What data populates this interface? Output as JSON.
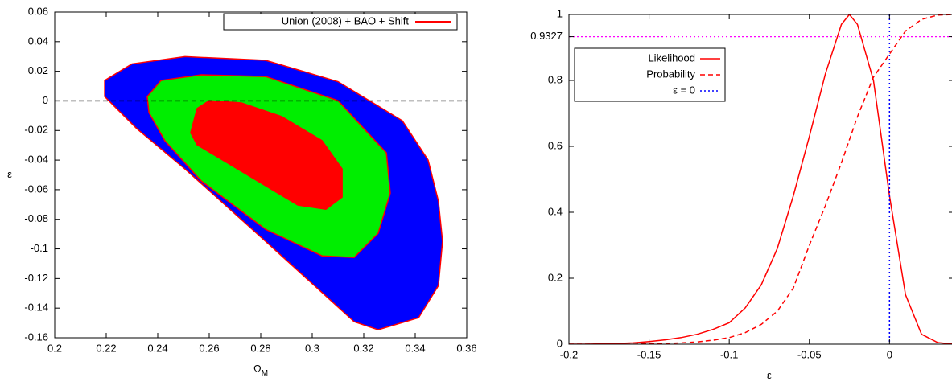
{
  "chart_data": [
    {
      "type": "contour",
      "x_label": "Ω",
      "x_label_sub": "M",
      "y_label": "ε",
      "xlim": [
        0.2,
        0.36
      ],
      "xticks": [
        0.2,
        0.22,
        0.24,
        0.26,
        0.28,
        0.3,
        0.32,
        0.34,
        0.36
      ],
      "ylim": [
        -0.16,
        0.06
      ],
      "yticks": [
        -0.16,
        -0.14,
        -0.12,
        -0.1,
        -0.08,
        -0.06,
        -0.04,
        -0.02,
        0,
        0.02,
        0.04,
        0.06
      ],
      "legend_label": "Union (2008) + BAO + Shift",
      "edge_color": "#ff0000",
      "legend": "upper right",
      "contours": [
        {
          "color": "#0000ff",
          "x": [
            0.2194,
            0.23,
            0.2506,
            0.2819,
            0.31,
            0.335,
            0.345,
            0.349,
            0.3506,
            0.349,
            0.3413,
            0.3256,
            0.3163,
            0.2819,
            0.2506,
            0.2319,
            0.2194
          ],
          "y": [
            0.0138,
            0.025,
            0.0299,
            0.0274,
            0.013,
            -0.0134,
            -0.04,
            -0.0677,
            -0.0949,
            -0.1248,
            -0.1465,
            -0.1546,
            -0.1492,
            -0.0949,
            -0.046,
            -0.0188,
            0.0029
          ]
        },
        {
          "color": "#00ee00",
          "x": [
            0.2359,
            0.2413,
            0.2569,
            0.2819,
            0.31,
            0.3288,
            0.3303,
            0.3256,
            0.3163,
            0.3038,
            0.2819,
            0.2569,
            0.2428,
            0.2366
          ],
          "y": [
            0.0029,
            0.0138,
            0.0176,
            0.0165,
            0.0002,
            -0.0351,
            -0.0623,
            -0.0895,
            -0.1058,
            -0.1047,
            -0.0868,
            -0.0541,
            -0.027,
            -0.008
          ]
        },
        {
          "color": "#ff0000",
          "x": [
            0.2528,
            0.2553,
            0.26,
            0.2725,
            0.2881,
            0.3038,
            0.3116,
            0.3116,
            0.3053,
            0.2944,
            0.2788,
            0.2631,
            0.2553
          ],
          "y": [
            -0.0215,
            -0.0052,
            0.0002,
            -0.0014,
            -0.0106,
            -0.0269,
            -0.046,
            -0.065,
            -0.0732,
            -0.0704,
            -0.0541,
            -0.0378,
            -0.0297
          ]
        }
      ],
      "hlines": [
        {
          "y": 0,
          "color": "#000000",
          "dash": "dashed"
        }
      ]
    },
    {
      "type": "line",
      "x_label": "ε",
      "xlim": [
        -0.2,
        0.04
      ],
      "xticks": [
        -0.2,
        -0.15,
        -0.1,
        -0.05,
        0
      ],
      "ylim": [
        0,
        1
      ],
      "yticks": [
        0,
        0.2,
        0.4,
        0.6,
        0.8,
        0.9327,
        1
      ],
      "legend": "upper left",
      "x": [
        -0.2,
        -0.19,
        -0.18,
        -0.17,
        -0.16,
        -0.15,
        -0.14,
        -0.13,
        -0.12,
        -0.11,
        -0.1,
        -0.09,
        -0.08,
        -0.07,
        -0.06,
        -0.05,
        -0.04,
        -0.03,
        -0.025,
        -0.02,
        -0.01,
        0,
        0.01,
        0.02,
        0.03,
        0.04
      ],
      "series": [
        {
          "name": "Likelihood",
          "color": "#ff0000",
          "dash": "solid",
          "values": [
            0,
            0,
            0.001,
            0.002,
            0.004,
            0.008,
            0.013,
            0.02,
            0.03,
            0.045,
            0.065,
            0.11,
            0.18,
            0.29,
            0.45,
            0.63,
            0.82,
            0.97,
            1,
            0.97,
            0.8,
            0.45,
            0.15,
            0.03,
            0.005,
            0
          ]
        },
        {
          "name": "Probability",
          "color": "#ff0000",
          "dash": "dashed",
          "values": [
            0,
            0,
            0,
            0,
            0,
            0.001,
            0.002,
            0.004,
            0.007,
            0.012,
            0.02,
            0.035,
            0.06,
            0.1,
            0.17,
            0.3,
            0.42,
            0.55,
            0.62,
            0.69,
            0.81,
            0.88,
            0.95,
            0.985,
            0.998,
            1
          ]
        }
      ],
      "vlines": [
        {
          "x": 0,
          "name": "ε = 0",
          "color": "#0000ff",
          "dash": "dotted"
        }
      ],
      "hlines": [
        {
          "y": 0.9327,
          "color": "#ff00ff",
          "dash": "dotted"
        }
      ]
    }
  ]
}
